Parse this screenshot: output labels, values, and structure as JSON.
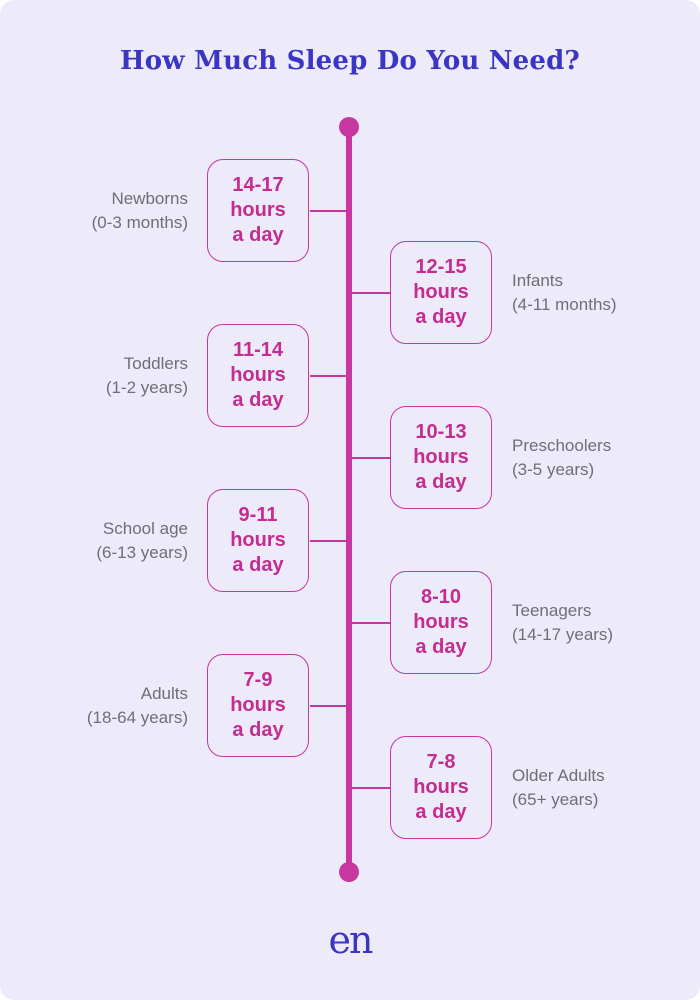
{
  "title": "How Much Sleep Do You Need?",
  "colors": {
    "card_background": "#EDEBFA",
    "page_background": "#FFFFFF",
    "accent_magenta": "#C637A0",
    "hours_text_pink": "#C42C90",
    "label_gray": "#6E6E77",
    "title_blue": "#3B35C4"
  },
  "unit_lines": [
    "hours",
    "a day"
  ],
  "timeline": {
    "entries": [
      {
        "side": "left",
        "hours_range": "14-17",
        "group": "Newborns",
        "age_range": "(0-3 months)"
      },
      {
        "side": "right",
        "hours_range": "12-15",
        "group": "Infants",
        "age_range": "(4-11 months)"
      },
      {
        "side": "left",
        "hours_range": "11-14",
        "group": "Toddlers",
        "age_range": "(1-2 years)"
      },
      {
        "side": "right",
        "hours_range": "10-13",
        "group": "Preschoolers",
        "age_range": "(3-5 years)"
      },
      {
        "side": "left",
        "hours_range": "9-11",
        "group": "School age",
        "age_range": "(6-13 years)"
      },
      {
        "side": "right",
        "hours_range": "8-10",
        "group": "Teenagers",
        "age_range": "(14-17 years)"
      },
      {
        "side": "left",
        "hours_range": "7-9",
        "group": "Adults",
        "age_range": "(18-64 years)"
      },
      {
        "side": "right",
        "hours_range": "7-8",
        "group": "Older Adults",
        "age_range": "(65+ years)"
      }
    ]
  },
  "logo": {
    "text": "en"
  }
}
